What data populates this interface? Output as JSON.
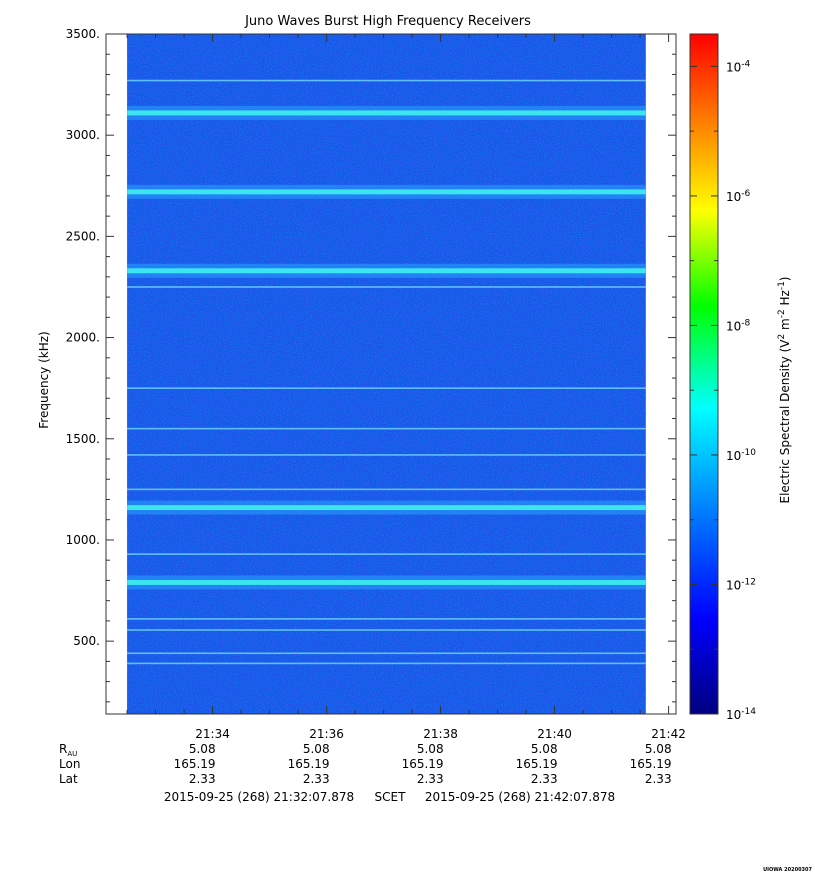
{
  "chart_data": {
    "type": "heatmap",
    "title": "Juno Waves Burst High Frequency Receivers",
    "ylabel": "Frequency (kHz)",
    "ylim": [
      140,
      3500
    ],
    "yticks": [
      "3500.",
      "3000.",
      "2500.",
      "2000.",
      "1500.",
      "1000.",
      "500."
    ],
    "ytick_values": [
      3500,
      3000,
      2500,
      2000,
      1500,
      1000,
      500
    ],
    "xlim_minutes": [
      1292.13,
      1302.13
    ],
    "xticks": [
      "21:34",
      "21:36",
      "21:38",
      "21:40",
      "21:42"
    ],
    "xtick_minutes": [
      1294,
      1296,
      1298,
      1300,
      1302
    ],
    "data_x_range_minutes": [
      1292.5,
      1301.6
    ],
    "emission_bands_khz": [
      3110,
      2720,
      2330,
      1160,
      790
    ],
    "narrow_lines_khz": [
      3270,
      2250,
      1750,
      1550,
      1420,
      1250,
      930,
      610,
      555,
      440,
      390
    ],
    "colorbar": {
      "label_prefix": "Electric Spectral Density (V",
      "label_mid": " m",
      "label_end": " Hz",
      "label_close": ")",
      "sup2": "2",
      "supm2": "-2",
      "supm1": "-1",
      "scale": "log",
      "range": [
        -14,
        -3.5
      ],
      "ticks": [
        {
          "exp": -4,
          "base": "10",
          "sup": "-4"
        },
        {
          "exp": -6,
          "base": "10",
          "sup": "-6"
        },
        {
          "exp": -8,
          "base": "10",
          "sup": "-8"
        },
        {
          "exp": -10,
          "base": "10",
          "sup": "-10"
        },
        {
          "exp": -12,
          "base": "10",
          "sup": "-12"
        },
        {
          "exp": -14,
          "base": "10",
          "sup": "-14"
        }
      ],
      "colors": [
        "#00007f",
        "#0000ff",
        "#007fff",
        "#00ffff",
        "#00ff00",
        "#ffff00",
        "#ff7f00",
        "#ff0000"
      ]
    },
    "ephemeris": {
      "rows": [
        {
          "label": "R",
          "sub": "AU",
          "values": [
            "5.08",
            "5.08",
            "5.08",
            "5.08",
            "5.08"
          ]
        },
        {
          "label": "Lon",
          "sub": "",
          "values": [
            "165.19",
            "165.19",
            "165.19",
            "165.19",
            "165.19"
          ]
        },
        {
          "label": "Lat",
          "sub": "",
          "values": [
            "2.33",
            "2.33",
            "2.33",
            "2.33",
            "2.33"
          ]
        }
      ]
    },
    "time_range": {
      "start": "2015-09-25 (268) 21:32:07.878",
      "label": "SCET",
      "end": "2015-09-25 (268) 21:42:07.878"
    },
    "stamp": "UIOWA 20200307"
  }
}
